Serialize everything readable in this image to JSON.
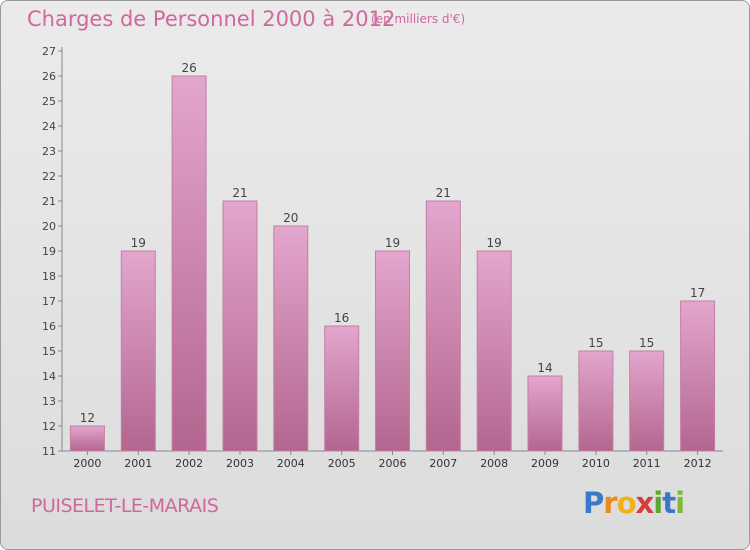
{
  "header": {
    "title": "Charges de Personnel 2000 à 2012",
    "subtitle": "(en milliers d'€)"
  },
  "footer": {
    "commune": "PUISELET-LE-MARAIS",
    "brand_letters": [
      "P",
      "r",
      "o",
      "x",
      "i",
      "t",
      "i"
    ],
    "brand_colors": [
      "#3a78c9",
      "#e98a1c",
      "#f0b21c",
      "#d63c3c",
      "#5aa832",
      "#3a78c9",
      "#7fb93a"
    ]
  },
  "colors": {
    "bar_top": "#e3a6cc",
    "bar_bottom": "#b3668f",
    "bar_edge": "#c47fa6",
    "text_accent": "#d0679d"
  },
  "chart_data": {
    "type": "bar",
    "categories": [
      "2000",
      "2001",
      "2002",
      "2003",
      "2004",
      "2005",
      "2006",
      "2007",
      "2008",
      "2009",
      "2010",
      "2011",
      "2012"
    ],
    "values": [
      12,
      19,
      26,
      21,
      20,
      16,
      19,
      21,
      19,
      14,
      15,
      15,
      17
    ],
    "title": "Charges de Personnel 2000 à 2012",
    "xlabel": "",
    "ylabel": "",
    "ylim": [
      11,
      27
    ],
    "yticks": [
      11,
      12,
      13,
      14,
      15,
      16,
      17,
      18,
      19,
      20,
      21,
      22,
      23,
      24,
      25,
      26,
      27
    ],
    "grid": false,
    "legend": "none"
  }
}
